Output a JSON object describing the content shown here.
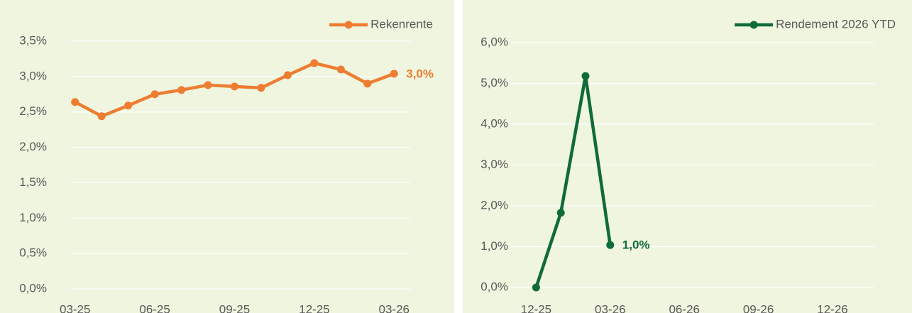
{
  "chart_data": [
    {
      "type": "line",
      "categories": [
        "03-25",
        null,
        null,
        "06-25",
        null,
        null,
        "09-25",
        null,
        null,
        "12-25",
        null,
        null,
        "03-26"
      ],
      "series": [
        {
          "name": "Rekenrente",
          "color": "#ed7d31",
          "values": [
            2.64,
            2.44,
            2.59,
            2.75,
            2.81,
            2.88,
            2.86,
            2.84,
            3.02,
            3.19,
            3.1,
            2.9,
            3.04
          ],
          "value_labels": [
            null,
            null,
            null,
            null,
            null,
            null,
            null,
            null,
            null,
            null,
            null,
            null,
            "3,0%"
          ]
        }
      ],
      "ylim": [
        0,
        3.5
      ],
      "yticks": [
        {
          "value": 0,
          "label": "0,0%"
        },
        {
          "value": 0.5,
          "label": "0,5%"
        },
        {
          "value": 1,
          "label": "1,0%"
        },
        {
          "value": 1.5,
          "label": "1,5%"
        },
        {
          "value": 2,
          "label": "2,0%"
        },
        {
          "value": 2.5,
          "label": "2,5%"
        },
        {
          "value": 3,
          "label": "3,0%"
        },
        {
          "value": 3.5,
          "label": "3,5%"
        }
      ],
      "grid": true,
      "legend": "top-right"
    },
    {
      "type": "line",
      "categories": [
        "12-25",
        null,
        null,
        "03-26",
        null,
        null,
        "06-26",
        null,
        null,
        "09-26",
        null,
        null,
        "12-26"
      ],
      "series": [
        {
          "name": "Rendement 2026 YTD",
          "color": "#0f6b38",
          "values": [
            0,
            1.83,
            5.18,
            1.04,
            null,
            null,
            null,
            null,
            null,
            null,
            null,
            null,
            null
          ],
          "value_labels": [
            null,
            null,
            null,
            "1,0%",
            null,
            null,
            null,
            null,
            null,
            null,
            null,
            null,
            null
          ]
        }
      ],
      "ylim": [
        0,
        6
      ],
      "yticks": [
        {
          "value": 0,
          "label": "0,0%"
        },
        {
          "value": 1,
          "label": "1,0%"
        },
        {
          "value": 2,
          "label": "2,0%"
        },
        {
          "value": 3,
          "label": "3,0%"
        },
        {
          "value": 4,
          "label": "4,0%"
        },
        {
          "value": 5,
          "label": "5,0%"
        },
        {
          "value": 6,
          "label": "6,0%"
        }
      ],
      "grid": true,
      "legend": "top-right"
    }
  ]
}
